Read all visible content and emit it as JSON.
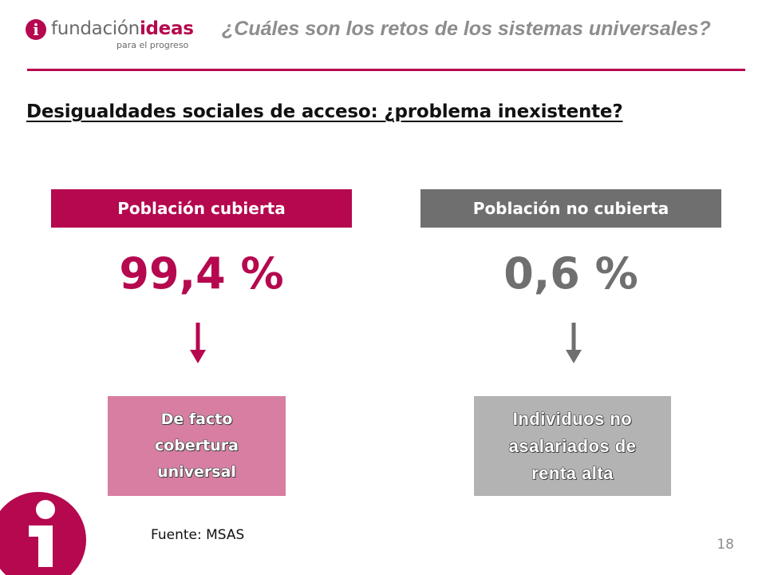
{
  "logo": {
    "wordmark_part1": "fundación",
    "wordmark_part2": "ideas",
    "tagline": "para el progreso",
    "badge_glyph": "i",
    "icon": "fundacion-ideas-logo-icon"
  },
  "header": {
    "title": "¿Cuáles son los retos de los sistemas universales?"
  },
  "slide": {
    "title": "Desigualdades sociales de acceso: ¿problema inexistente?"
  },
  "columns": [
    {
      "label": "Población cubierta",
      "value": "99,4 %",
      "result": "De facto cobertura universal",
      "color": "#b5084f",
      "result_color": "#d77ea2",
      "arrow_icon": "down-arrow-icon"
    },
    {
      "label": "Población no cubierta",
      "value": "0,6 %",
      "result": "Individuos no asalariados de renta alta",
      "color": "#6f6f6f",
      "result_color": "#b3b3b3",
      "arrow_icon": "down-arrow-icon"
    }
  ],
  "footer": {
    "source": "Fuente: MSAS",
    "page_number": "18"
  },
  "colors": {
    "brand": "#b5084f",
    "neutral": "#6f6f6f",
    "header_text": "#8d8d8d"
  },
  "corner_emblem_icon": "ideas-i-emblem-icon"
}
